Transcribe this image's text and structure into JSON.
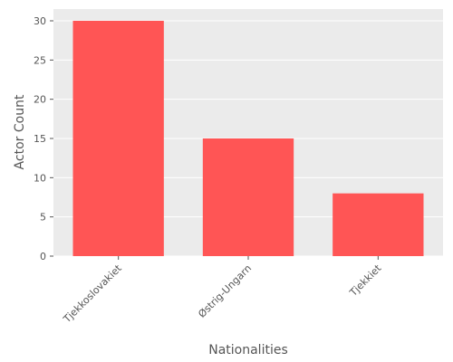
{
  "chart_data": {
    "type": "bar",
    "categories": [
      "Tjekkoslovakiet",
      "Østrig-Ungarn",
      "Tjekkiet"
    ],
    "values": [
      30,
      15,
      8
    ],
    "title": "",
    "xlabel": "Nationalities",
    "ylabel": "Actor Count",
    "ylim": [
      0,
      31.5
    ],
    "yticks": [
      0,
      5,
      10,
      15,
      20,
      25,
      30
    ],
    "grid": true,
    "legend": "none",
    "colors": {
      "bar": "#FF5555",
      "plot_background": "#EBEBEB",
      "grid": "#FFFFFF"
    }
  }
}
